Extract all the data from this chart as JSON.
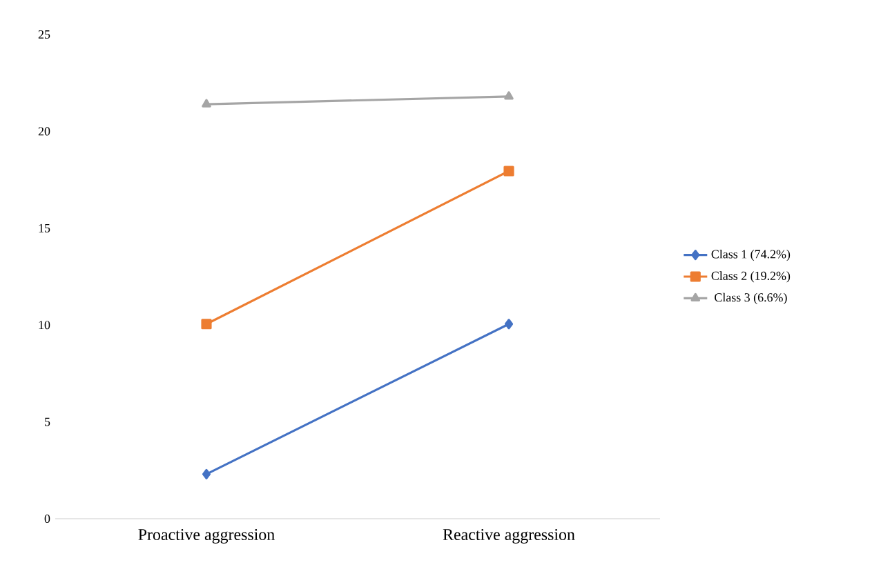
{
  "chart_data": {
    "type": "line",
    "categories": [
      "Proactive aggression",
      "Reactive aggression"
    ],
    "series": [
      {
        "name": "Class 1 (74.2%)",
        "color": "#4472c4",
        "marker": "diamond",
        "values": [
          2.3,
          10.05
        ]
      },
      {
        "name": "Class 2 (19.2%)",
        "color": "#ed7d31",
        "marker": "square",
        "values": [
          10.05,
          17.95
        ]
      },
      {
        "name": "Class 3 (6.6%)",
        "color": "#a5a5a5",
        "marker": "triangle",
        "values": [
          21.4,
          21.8
        ]
      }
    ],
    "ylim": [
      0,
      25
    ],
    "yticks": [
      0,
      5,
      10,
      15,
      20,
      25
    ],
    "grid": false,
    "legend": "right",
    "line_style": "solid"
  }
}
